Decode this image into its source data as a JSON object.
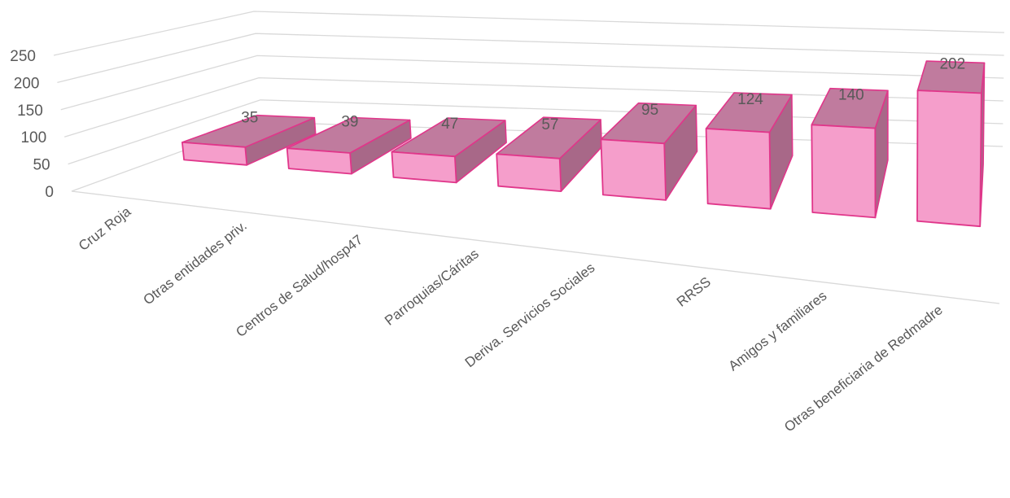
{
  "chart_data": {
    "type": "bar",
    "style": "3d-column",
    "categories": [
      "Cruz Roja",
      "Otras entidades priv.",
      "Centros de Salud/hosp47",
      "Parroquias/Cáritas",
      "Deriva. Servicios Sociales",
      "RRSS",
      "Amigos y familiares",
      "Otras beneficiaria de Redmadre"
    ],
    "values": [
      35,
      39,
      47,
      57,
      95,
      124,
      140,
      202
    ],
    "data_labels": [
      "35",
      "39",
      "47",
      "57",
      "95",
      "124",
      "140",
      "202"
    ],
    "ylim": [
      0,
      250
    ],
    "yticks": [
      "0",
      "50",
      "100",
      "150",
      "200",
      "250"
    ],
    "title": "",
    "xlabel": "",
    "ylabel": "",
    "grid": true,
    "legend": "none",
    "colors": {
      "bar_front": "#f59ecb",
      "bar_top": "#c07b9e",
      "bar_side": "#a86888",
      "bar_edge": "#e0368a",
      "grid": "#d9d9d9",
      "text": "#595959"
    }
  }
}
